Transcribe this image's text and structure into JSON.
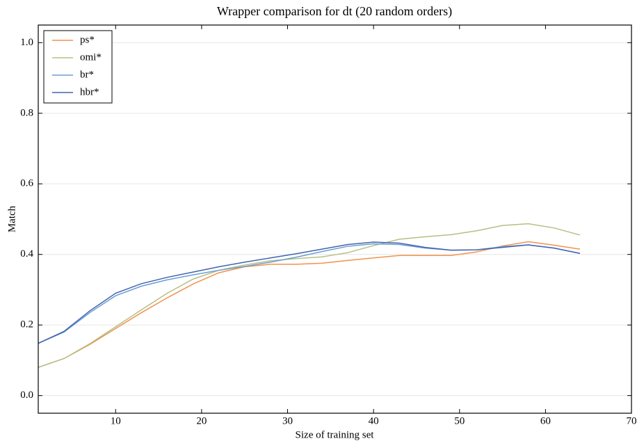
{
  "chart_data": {
    "type": "line",
    "title": "Wrapper comparison for dt (20 random orders)",
    "xlabel": "Size of training set",
    "ylabel": "Match",
    "x": [
      1,
      4,
      7,
      10,
      13,
      16,
      19,
      22,
      25,
      28,
      31,
      34,
      37,
      40,
      43,
      46,
      49,
      52,
      55,
      58,
      61,
      64
    ],
    "series": [
      {
        "name": "ps*",
        "color": "#f0924d",
        "values": [
          0.08,
          0.105,
          0.145,
          0.19,
          0.235,
          0.277,
          0.316,
          0.348,
          0.365,
          0.372,
          0.372,
          0.375,
          0.383,
          0.39,
          0.397,
          0.397,
          0.397,
          0.407,
          0.424,
          0.436,
          0.426,
          0.415
        ]
      },
      {
        "name": "omi*",
        "color": "#b5bf84",
        "values": [
          0.08,
          0.105,
          0.147,
          0.195,
          0.243,
          0.29,
          0.33,
          0.355,
          0.37,
          0.382,
          0.388,
          0.393,
          0.405,
          0.425,
          0.443,
          0.45,
          0.456,
          0.467,
          0.482,
          0.487,
          0.475,
          0.455
        ]
      },
      {
        "name": "br*",
        "color": "#6a9ed0",
        "values": [
          0.148,
          0.18,
          0.235,
          0.283,
          0.31,
          0.328,
          0.342,
          0.355,
          0.366,
          0.378,
          0.392,
          0.408,
          0.423,
          0.43,
          0.428,
          0.418,
          0.412,
          0.413,
          0.422,
          0.427,
          0.418,
          0.403
        ]
      },
      {
        "name": "hbr*",
        "color": "#4363b0",
        "values": [
          0.148,
          0.182,
          0.24,
          0.29,
          0.317,
          0.335,
          0.35,
          0.365,
          0.378,
          0.39,
          0.402,
          0.415,
          0.428,
          0.435,
          0.432,
          0.42,
          0.412,
          0.413,
          0.42,
          0.427,
          0.418,
          0.403
        ]
      }
    ],
    "xlim": [
      1,
      70
    ],
    "xticks": [
      10,
      20,
      30,
      40,
      50,
      60,
      70
    ],
    "ylim": [
      -0.05,
      1.05
    ],
    "yticks": [
      {
        "value": 0,
        "label": "0.0"
      },
      0.2,
      0.4,
      0.6,
      0.8,
      {
        "value": 1,
        "label": "1.0"
      }
    ],
    "grid": true,
    "legend": "upper-left"
  }
}
